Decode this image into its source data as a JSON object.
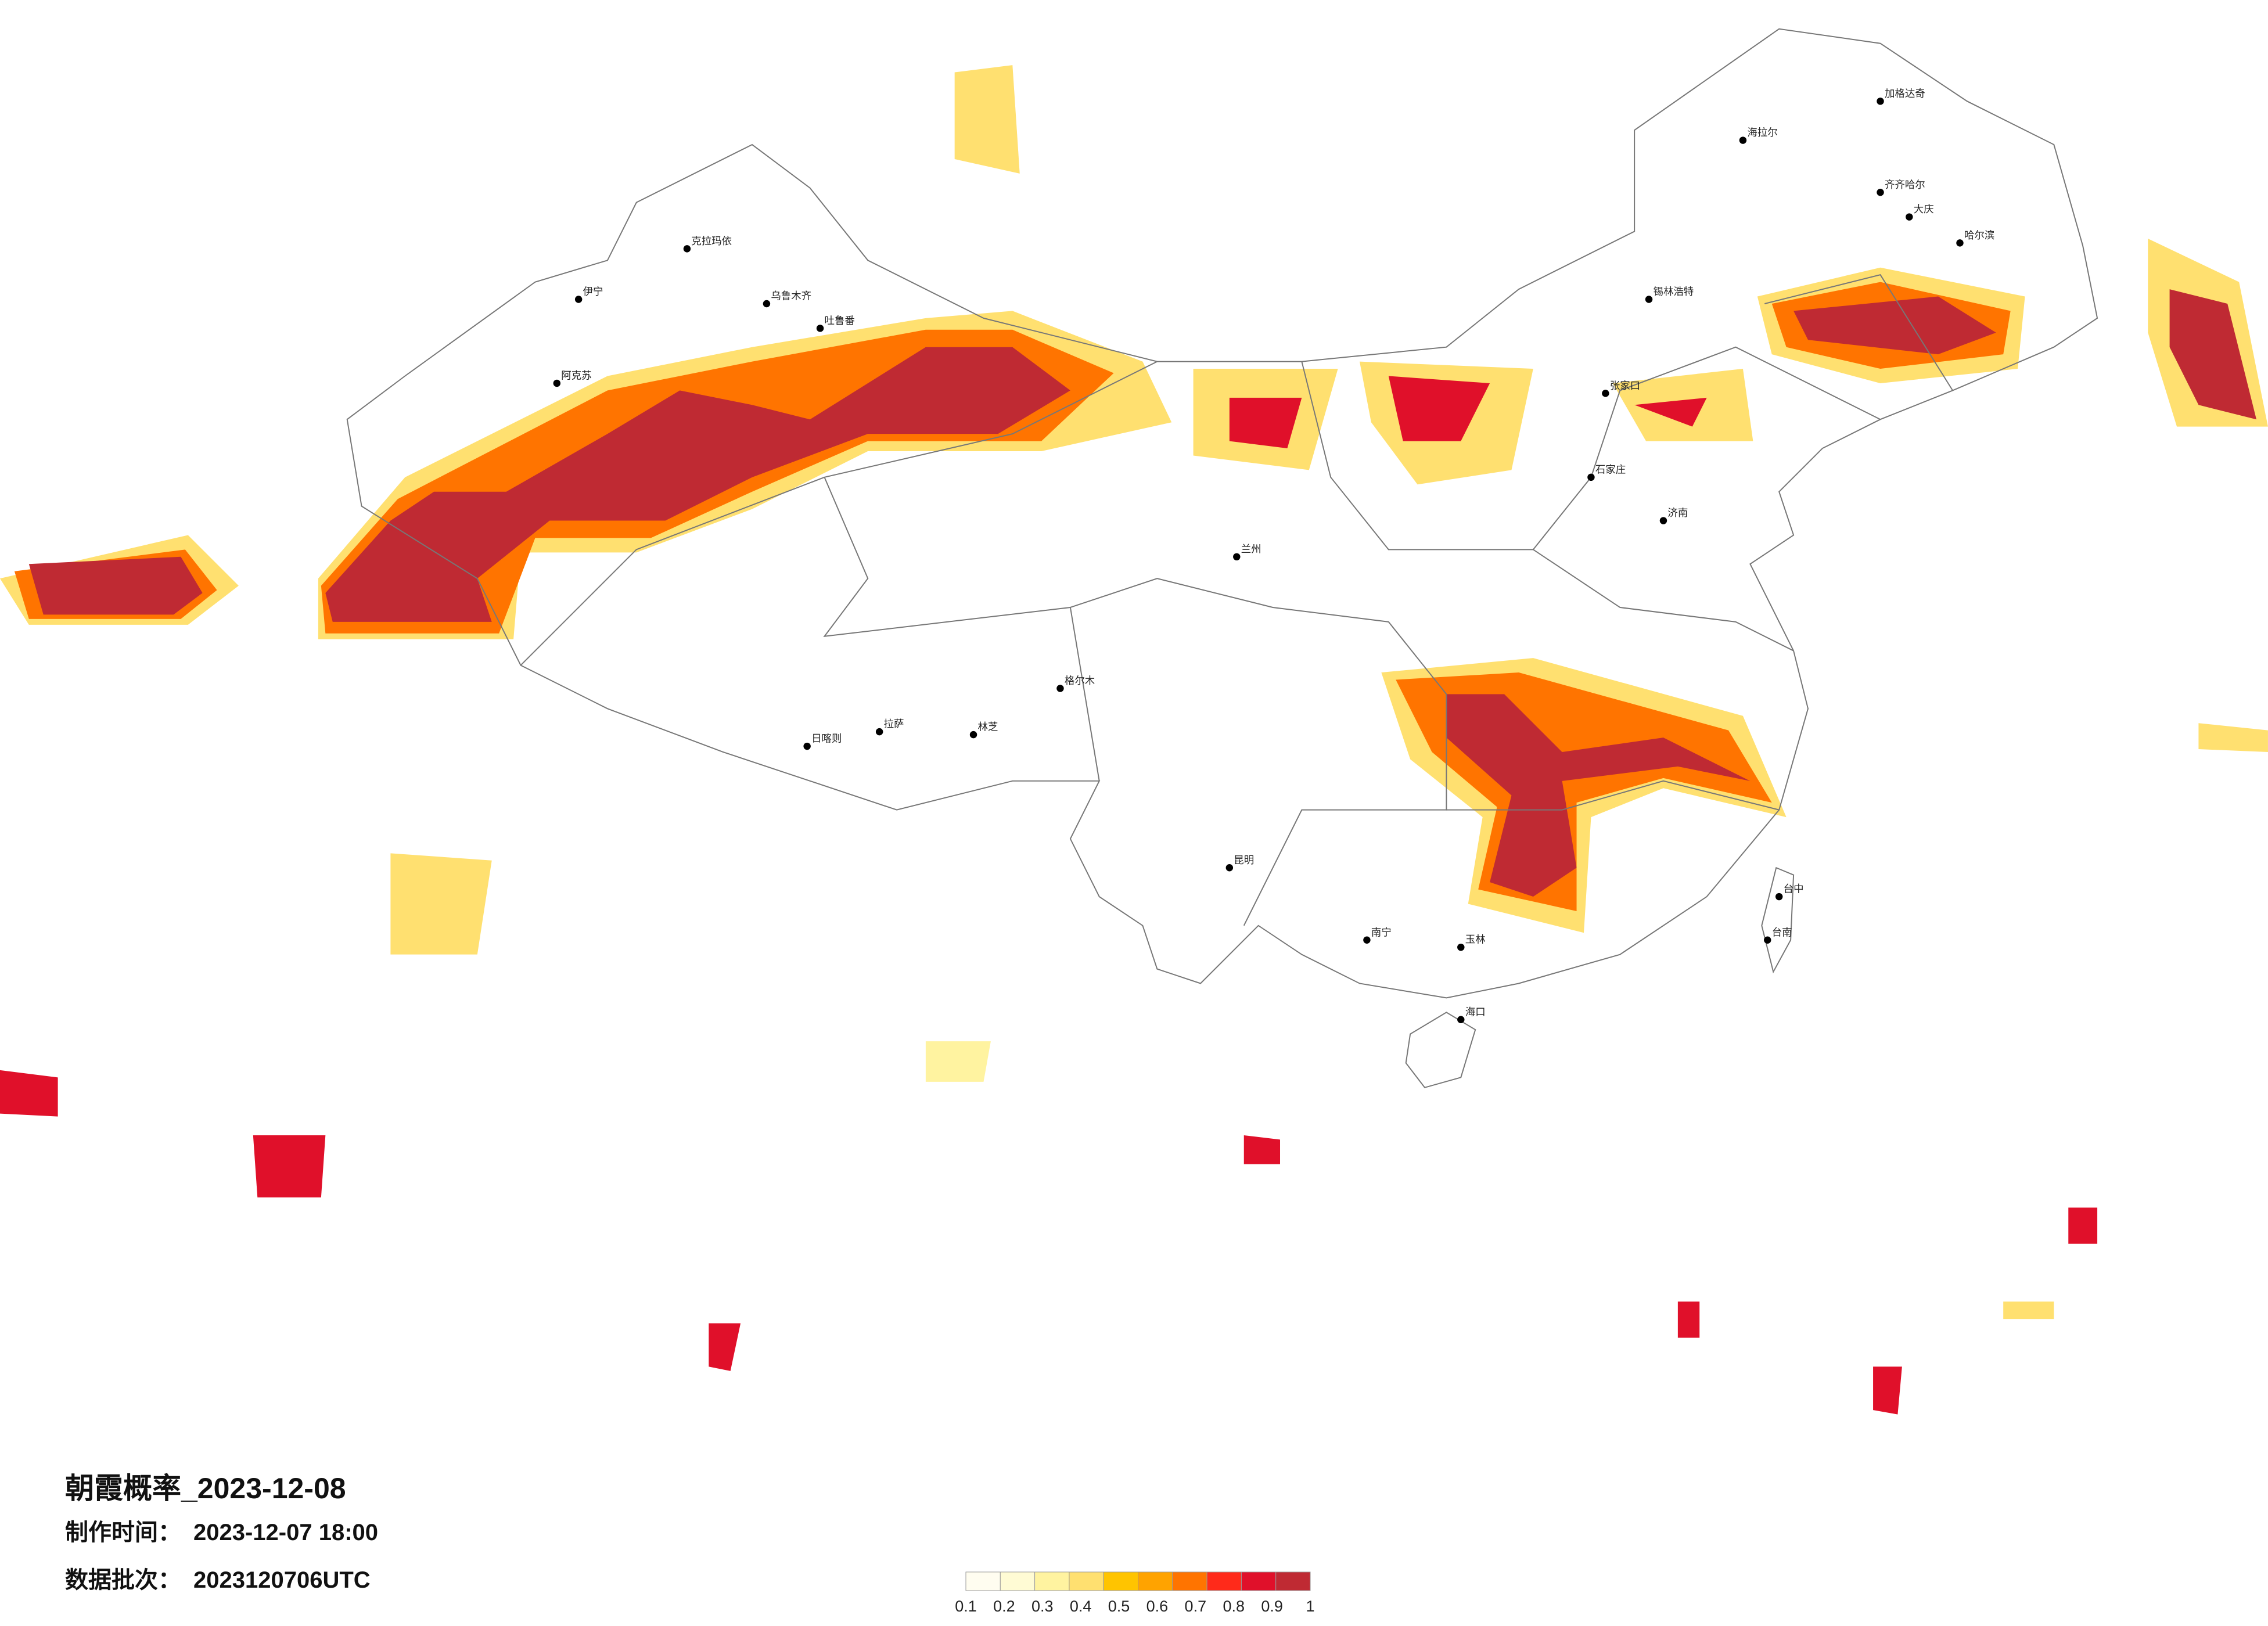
{
  "title": "朝霞概率_2023-12-08",
  "production_time": {
    "label": "制作时间：",
    "value": "2023-12-07 18:00"
  },
  "data_batch": {
    "label": "数据批次：",
    "value": "2023120706UTC"
  },
  "legend": {
    "ticks": [
      0.1,
      0.2,
      0.3,
      0.4,
      0.5,
      0.6,
      0.7,
      0.8,
      0.9,
      1
    ],
    "colors": [
      "#fffdf0",
      "#fffbd4",
      "#fff3a0",
      "#ffe070",
      "#ffc400",
      "#ffa300",
      "#ff7400",
      "#ff2a1a",
      "#e0102a",
      "#bf2a33"
    ]
  },
  "cities": [
    "克拉玛依",
    "伊宁",
    "乌鲁木齐",
    "吐鲁番",
    "阿克苏",
    "格尔木",
    "拉萨",
    "日喀则",
    "林芝",
    "海拉尔",
    "加格达奇",
    "齐齐哈尔",
    "大庆",
    "哈尔滨",
    "锡林浩特",
    "张家口",
    "石家庄",
    "济南",
    "昆明",
    "南宁",
    "玉林",
    "海口",
    "台中",
    "台南",
    "兰州"
  ]
}
